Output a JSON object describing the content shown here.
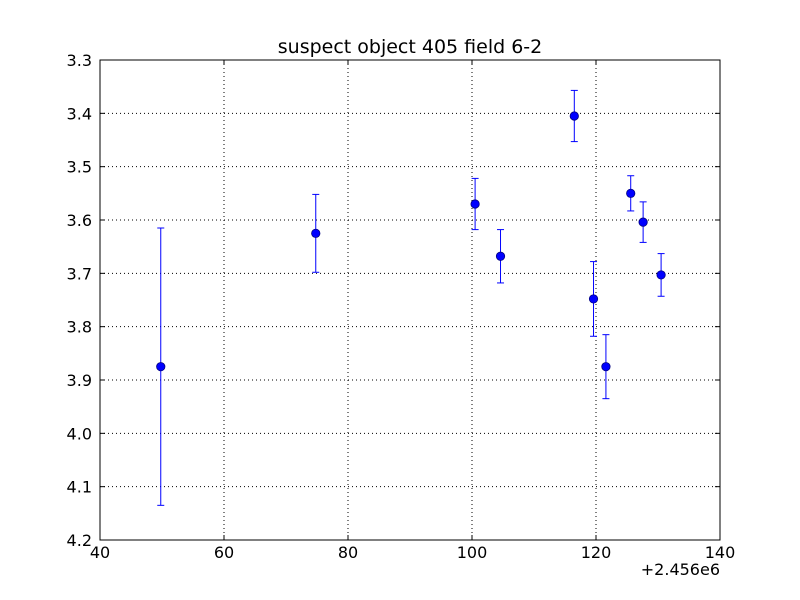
{
  "chart_data": {
    "type": "scatter",
    "title": "suspect object 405 field 6-2",
    "xlabel": "",
    "ylabel": "",
    "x_offset_label": "+2.456e6",
    "xlim": [
      40,
      140
    ],
    "ylim": [
      4.2,
      3.3
    ],
    "y_inverted": true,
    "grid": true,
    "xticks": [
      40,
      60,
      80,
      100,
      120,
      140
    ],
    "yticks": [
      3.3,
      3.4,
      3.5,
      3.6,
      3.7,
      3.8,
      3.9,
      4.0,
      4.1,
      4.2
    ],
    "xtick_labels": [
      "40",
      "60",
      "80",
      "100",
      "120",
      "140"
    ],
    "ytick_labels": [
      "3.3",
      "3.4",
      "3.5",
      "3.6",
      "3.7",
      "3.8",
      "3.9",
      "4.0",
      "4.1",
      "4.2"
    ],
    "series": [
      {
        "marker": "circle",
        "color": "#0000ff",
        "x": [
          49.8,
          74.8,
          100.5,
          104.6,
          116.5,
          119.6,
          121.6,
          125.6,
          127.6,
          130.5
        ],
        "y": [
          3.875,
          3.625,
          3.57,
          3.668,
          3.405,
          3.748,
          3.875,
          3.55,
          3.604,
          3.703
        ],
        "yerr": [
          0.26,
          0.073,
          0.048,
          0.05,
          0.048,
          0.07,
          0.06,
          0.033,
          0.038,
          0.04
        ]
      }
    ]
  }
}
